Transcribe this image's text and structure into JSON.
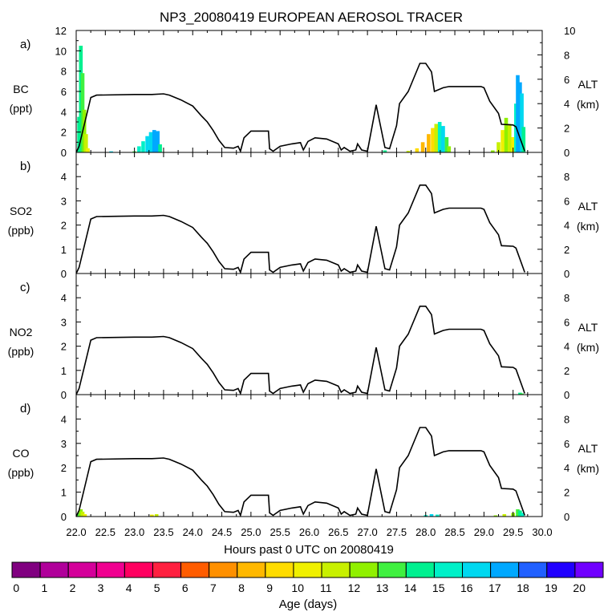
{
  "figure": {
    "title": "NP3_20080419 EUROPEAN AEROSOL TRACER",
    "xlabel": "Hours past 0 UTC on 20080419",
    "x_ticks": [
      "22.0",
      "22.5",
      "23.0",
      "23.5",
      "24.0",
      "24.5",
      "25.0",
      "25.5",
      "26.0",
      "26.5",
      "27.0",
      "27.5",
      "28.0",
      "28.5",
      "29.0",
      "29.5",
      "30.0"
    ],
    "xlim": [
      22.0,
      30.0
    ],
    "colorbar": {
      "label": "Age (days)",
      "ticks": [
        "0",
        "1",
        "2",
        "3",
        "4",
        "5",
        "6",
        "7",
        "8",
        "9",
        "10",
        "11",
        "12",
        "13",
        "14",
        "15",
        "16",
        "17",
        "18",
        "19",
        "20"
      ],
      "colors": [
        "#800080",
        "#b0009a",
        "#d4009a",
        "#f00090",
        "#ff0060",
        "#ff2040",
        "#ff5c00",
        "#ff9000",
        "#ffb800",
        "#ffdc00",
        "#f0f000",
        "#c8f000",
        "#90f000",
        "#40f040",
        "#00f090",
        "#00f0c8",
        "#00d8f0",
        "#00a8ff",
        "#2060ff",
        "#2000ff",
        "#7000ff"
      ]
    }
  },
  "chart_data": [
    {
      "type": "bar",
      "panel_label": "a)",
      "title": "",
      "ylabel": [
        "BC",
        "(ppt)"
      ],
      "ylim": [
        0,
        12
      ],
      "y_ticks": [
        "0",
        "2",
        "4",
        "6",
        "8",
        "10",
        "12"
      ],
      "y2label": [
        "ALT",
        "(km)"
      ],
      "y2lim": [
        0,
        10
      ],
      "y2_ticks": [
        "0",
        "2",
        "4",
        "6",
        "8",
        "10"
      ],
      "tracer_bins": [
        [
          22.05,
          3.5,
          14
        ],
        [
          22.08,
          10.5,
          14
        ],
        [
          22.11,
          7.8,
          13
        ],
        [
          22.14,
          4.2,
          12
        ],
        [
          22.17,
          1.8,
          11
        ],
        [
          22.2,
          0.4,
          10
        ],
        [
          22.6,
          0.1,
          16
        ],
        [
          23.0,
          0.1,
          13
        ],
        [
          23.08,
          0.6,
          15
        ],
        [
          23.15,
          1.1,
          15
        ],
        [
          23.22,
          1.6,
          16
        ],
        [
          23.28,
          2.0,
          16
        ],
        [
          23.34,
          2.2,
          17
        ],
        [
          23.4,
          2.1,
          17
        ],
        [
          23.44,
          0.8,
          14
        ],
        [
          27.3,
          0.2,
          14
        ],
        [
          27.7,
          0.15,
          11
        ],
        [
          27.85,
          0.4,
          9
        ],
        [
          27.95,
          1.0,
          8
        ],
        [
          28.05,
          1.8,
          8
        ],
        [
          28.12,
          2.4,
          9
        ],
        [
          28.18,
          2.8,
          11
        ],
        [
          28.24,
          3.0,
          15
        ],
        [
          28.3,
          2.6,
          16
        ],
        [
          28.36,
          1.5,
          13
        ],
        [
          28.4,
          0.6,
          12
        ],
        [
          29.15,
          0.2,
          12
        ],
        [
          29.25,
          1.0,
          11
        ],
        [
          29.32,
          2.2,
          10
        ],
        [
          29.38,
          3.4,
          12
        ],
        [
          29.44,
          2.8,
          11
        ],
        [
          29.5,
          1.5,
          10
        ],
        [
          29.55,
          4.8,
          15
        ],
        [
          29.58,
          7.6,
          17
        ],
        [
          29.62,
          6.9,
          17
        ],
        [
          29.65,
          5.8,
          16
        ],
        [
          29.68,
          2.5,
          14
        ]
      ],
      "altitude_km": [
        [
          22.0,
          0
        ],
        [
          22.05,
          0.5
        ],
        [
          22.15,
          2.5
        ],
        [
          22.25,
          4.5
        ],
        [
          22.35,
          4.7
        ],
        [
          23.0,
          4.75
        ],
        [
          23.3,
          4.75
        ],
        [
          23.5,
          4.8
        ],
        [
          23.6,
          4.7
        ],
        [
          23.8,
          4.3
        ],
        [
          24.0,
          3.8
        ],
        [
          24.15,
          3.0
        ],
        [
          24.25,
          2.5
        ],
        [
          24.35,
          1.8
        ],
        [
          24.45,
          1.0
        ],
        [
          24.55,
          0.4
        ],
        [
          24.7,
          0.35
        ],
        [
          24.78,
          0.5
        ],
        [
          24.82,
          0.1
        ],
        [
          24.88,
          1.2
        ],
        [
          25.0,
          1.75
        ],
        [
          25.3,
          1.75
        ],
        [
          25.32,
          0.3
        ],
        [
          25.38,
          0.1
        ],
        [
          25.5,
          0.5
        ],
        [
          25.7,
          0.7
        ],
        [
          25.85,
          0.8
        ],
        [
          25.9,
          0.2
        ],
        [
          25.98,
          0.9
        ],
        [
          26.1,
          1.2
        ],
        [
          26.3,
          1.1
        ],
        [
          26.5,
          0.7
        ],
        [
          26.55,
          0.2
        ],
        [
          26.6,
          0.4
        ],
        [
          26.7,
          0.1
        ],
        [
          26.8,
          0.2
        ],
        [
          26.83,
          0.7
        ],
        [
          26.9,
          0.2
        ],
        [
          27.0,
          0.1
        ],
        [
          27.15,
          3.9
        ],
        [
          27.3,
          0.4
        ],
        [
          27.38,
          0.3
        ],
        [
          27.5,
          2.2
        ],
        [
          27.55,
          4.0
        ],
        [
          27.7,
          5.0
        ],
        [
          27.9,
          7.3
        ],
        [
          28.0,
          7.3
        ],
        [
          28.1,
          6.6
        ],
        [
          28.15,
          5.0
        ],
        [
          28.3,
          5.3
        ],
        [
          28.4,
          5.4
        ],
        [
          28.95,
          5.4
        ],
        [
          29.0,
          5.3
        ],
        [
          29.1,
          4.2
        ],
        [
          29.25,
          3.2
        ],
        [
          29.3,
          2.3
        ],
        [
          29.5,
          2.25
        ],
        [
          29.55,
          2.1
        ],
        [
          29.7,
          0.1
        ]
      ]
    },
    {
      "type": "line",
      "panel_label": "b)",
      "title": "",
      "ylabel": [
        "SO2",
        "(ppb)"
      ],
      "ylim": [
        0,
        5
      ],
      "y_ticks": [
        "0",
        "1",
        "2",
        "3",
        "4"
      ],
      "y2label": [
        "ALT",
        "(km)"
      ],
      "y2lim": [
        0,
        10
      ],
      "y2_ticks": [
        "0",
        "2",
        "4",
        "6",
        "8"
      ],
      "tracer_bins": [],
      "altitude_km": "same as panel a)"
    },
    {
      "type": "line",
      "panel_label": "c)",
      "title": "",
      "ylabel": [
        "NO2",
        "(ppb)"
      ],
      "ylim": [
        0,
        5
      ],
      "y_ticks": [
        "0",
        "1",
        "2",
        "3",
        "4"
      ],
      "y2label": [
        "ALT",
        "(km)"
      ],
      "y2lim": [
        0,
        10
      ],
      "y2_ticks": [
        "0",
        "2",
        "4",
        "6",
        "8"
      ],
      "tracer_bins": [
        [
          29.62,
          0.08,
          14
        ],
        [
          29.65,
          0.05,
          13
        ]
      ],
      "altitude_km": "same as panel a)"
    },
    {
      "type": "bar",
      "panel_label": "d)",
      "title": "",
      "ylabel": [
        "CO",
        "(ppb)"
      ],
      "ylim": [
        0,
        5
      ],
      "y_ticks": [
        "0",
        "1",
        "2",
        "3",
        "4"
      ],
      "y2label": [
        "ALT",
        "(km)"
      ],
      "y2lim": [
        0,
        10
      ],
      "y2_ticks": [
        "0",
        "2",
        "4",
        "6",
        "8"
      ],
      "tracer_bins": [
        [
          22.05,
          0.15,
          13
        ],
        [
          22.08,
          0.3,
          12
        ],
        [
          22.11,
          0.2,
          11
        ],
        [
          22.15,
          0.1,
          10
        ],
        [
          23.3,
          0.08,
          10
        ],
        [
          23.38,
          0.1,
          11
        ],
        [
          28.0,
          0.06,
          15
        ],
        [
          28.1,
          0.1,
          16
        ],
        [
          28.2,
          0.08,
          15
        ],
        [
          29.2,
          0.05,
          12
        ],
        [
          29.35,
          0.1,
          11
        ],
        [
          29.5,
          0.15,
          12
        ],
        [
          29.58,
          0.3,
          13
        ],
        [
          29.62,
          0.25,
          14
        ],
        [
          29.66,
          0.15,
          15
        ]
      ],
      "altitude_km": "same as panel a)"
    }
  ]
}
